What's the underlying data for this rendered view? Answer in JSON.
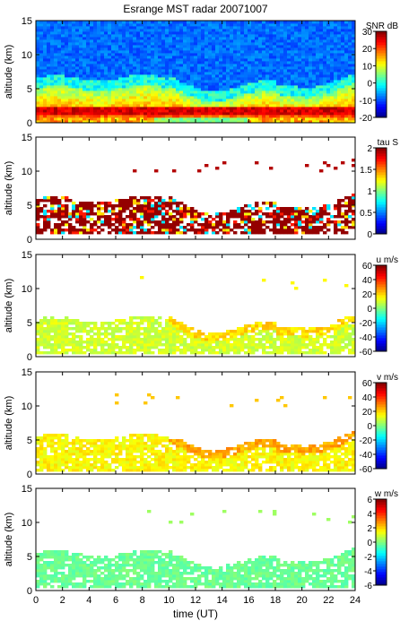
{
  "title": "Esrange MST radar 20071007",
  "xlabel": "time (UT)",
  "chart_data": [
    {
      "type": "heatmap",
      "ylabel": "altitude (km)",
      "xlim": [
        0,
        24
      ],
      "ylim": [
        0,
        15
      ],
      "x_ticks": [
        0,
        2,
        4,
        6,
        8,
        10,
        12,
        14,
        16,
        18,
        20,
        22,
        24
      ],
      "y_ticks": [
        0,
        5,
        10,
        15
      ],
      "colorbar": {
        "label": "SNR dB",
        "range": [
          -20,
          30
        ],
        "ticks": [
          30,
          20,
          10,
          0,
          -10,
          -20
        ]
      },
      "description_levels": {
        "upper_background_dB": -10,
        "near_ground_max_dB": 25,
        "layer_2km_dB": 20
      }
    },
    {
      "type": "heatmap",
      "ylabel": "altitude (km)",
      "xlim": [
        0,
        24
      ],
      "ylim": [
        0,
        15
      ],
      "x_ticks": [
        0,
        2,
        4,
        6,
        8,
        10,
        12,
        14,
        16,
        18,
        20,
        22,
        24
      ],
      "y_ticks": [
        0,
        5,
        10,
        15
      ],
      "colorbar": {
        "label": "tau S",
        "range": [
          0,
          2
        ],
        "ticks": [
          2,
          1.5,
          1,
          0.5,
          0
        ]
      }
    },
    {
      "type": "heatmap",
      "ylabel": "altitude (km)",
      "xlim": [
        0,
        24
      ],
      "ylim": [
        0,
        15
      ],
      "x_ticks": [
        0,
        2,
        4,
        6,
        8,
        10,
        12,
        14,
        16,
        18,
        20,
        22,
        24
      ],
      "y_ticks": [
        0,
        5,
        10,
        15
      ],
      "colorbar": {
        "label": "u m/s",
        "range": [
          -60,
          60
        ],
        "ticks": [
          60,
          40,
          20,
          0,
          -20,
          -40,
          -60
        ]
      }
    },
    {
      "type": "heatmap",
      "ylabel": "altitude (km)",
      "xlim": [
        0,
        24
      ],
      "ylim": [
        0,
        15
      ],
      "x_ticks": [
        0,
        2,
        4,
        6,
        8,
        10,
        12,
        14,
        16,
        18,
        20,
        22,
        24
      ],
      "y_ticks": [
        0,
        5,
        10,
        15
      ],
      "colorbar": {
        "label": "v m/s",
        "range": [
          -60,
          60
        ],
        "ticks": [
          60,
          40,
          20,
          0,
          -20,
          -40,
          -60
        ]
      }
    },
    {
      "type": "heatmap",
      "ylabel": "altitude (km)",
      "xlim": [
        0,
        24
      ],
      "ylim": [
        0,
        15
      ],
      "x_ticks": [
        0,
        2,
        4,
        6,
        8,
        10,
        12,
        14,
        16,
        18,
        20,
        22,
        24
      ],
      "y_ticks": [
        0,
        5,
        10,
        15
      ],
      "colorbar": {
        "label": "w m/s",
        "range": [
          -6,
          6
        ],
        "ticks": [
          6,
          4,
          2,
          0,
          -2,
          -4,
          -6
        ]
      }
    }
  ]
}
